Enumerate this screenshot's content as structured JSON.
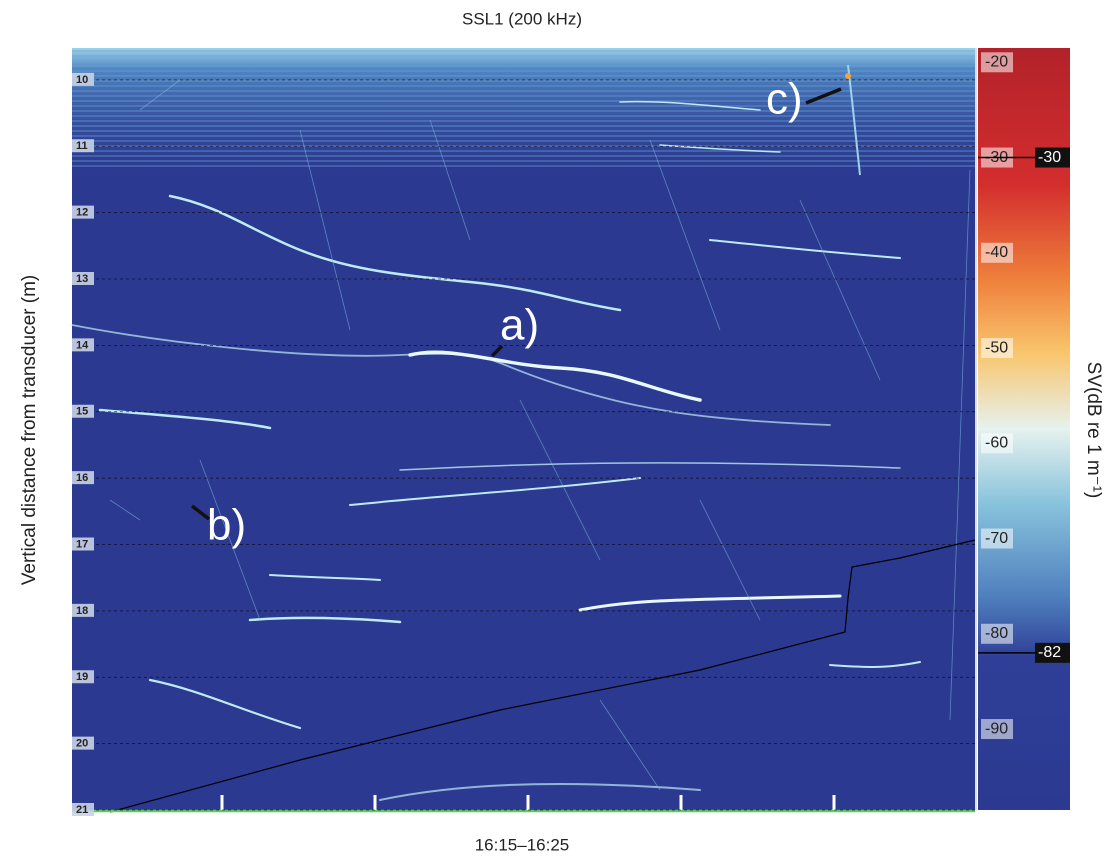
{
  "chart_data": {
    "type": "echogram",
    "title": "SSL1 (200 kHz)",
    "x_label": "16:15–16:25",
    "y_label": "Vertical distance from transducer (m)",
    "ylim": [
      9.52,
      21
    ],
    "y_inverted": true,
    "yticks": [
      10,
      11,
      12,
      13,
      14,
      15,
      16,
      17,
      18,
      19,
      20,
      21
    ],
    "grid": true,
    "colorbar": {
      "label": "SV(dB re 1 m⁻¹)",
      "clim": [
        -98.5,
        -18.5
      ],
      "ticks": [
        -20,
        -30,
        -40,
        -50,
        -60,
        -70,
        -80,
        -90
      ],
      "thresholds": [
        -30,
        -82
      ]
    },
    "annotations": [
      "a)",
      "b)",
      "c)"
    ]
  }
}
